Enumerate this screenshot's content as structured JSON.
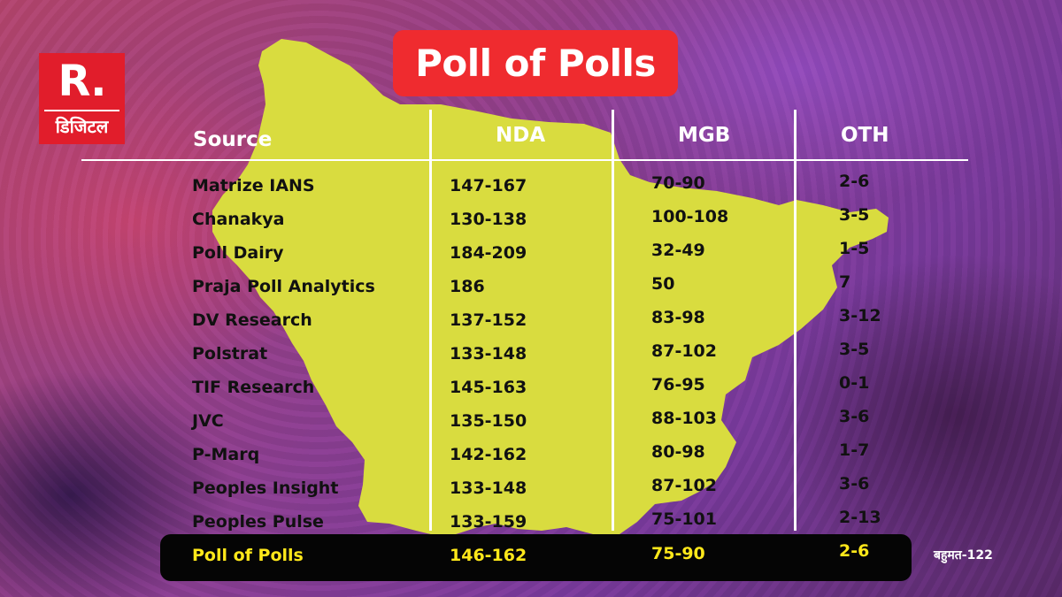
{
  "logo": {
    "mark": "R.",
    "subtitle": "डिजिटल"
  },
  "title": "Poll of Polls",
  "table": {
    "headers": [
      "Source",
      "NDA",
      "MGB",
      "OTH"
    ],
    "rows": [
      {
        "source": "Matrize IANS",
        "nda": "147-167",
        "mgb": "70-90",
        "oth": "2-6"
      },
      {
        "source": "Chanakya",
        "nda": "130-138",
        "mgb": "100-108",
        "oth": "3-5"
      },
      {
        "source": "Poll Dairy",
        "nda": "184-209",
        "mgb": "32-49",
        "oth": "1-5"
      },
      {
        "source": "Praja Poll Analytics",
        "nda": "186",
        "mgb": "50",
        "oth": "7"
      },
      {
        "source": "DV Research",
        "nda": "137-152",
        "mgb": "83-98",
        "oth": "3-12"
      },
      {
        "source": "Polstrat",
        "nda": "133-148",
        "mgb": "87-102",
        "oth": "3-5"
      },
      {
        "source": "TIF Research",
        "nda": "145-163",
        "mgb": "76-95",
        "oth": "0-1"
      },
      {
        "source": "JVC",
        "nda": "135-150",
        "mgb": "88-103",
        "oth": "3-6"
      },
      {
        "source": "P-Marq",
        "nda": "142-162",
        "mgb": "80-98",
        "oth": "1-7"
      },
      {
        "source": "Peoples Insight",
        "nda": "133-148",
        "mgb": "87-102",
        "oth": "3-6"
      },
      {
        "source": "Peoples Pulse",
        "nda": "133-159",
        "mgb": "75-101",
        "oth": "2-13"
      }
    ],
    "summary": {
      "source": "Poll of Polls",
      "nda": "146-162",
      "mgb": "75-90",
      "oth": "2-6"
    }
  },
  "majority_note": "बहुमत-122",
  "colors": {
    "map": "#d9dc3f",
    "title_bg": "#ef2b2f",
    "logo_bg": "#e11d2b",
    "highlight_text": "#ffe81a"
  }
}
